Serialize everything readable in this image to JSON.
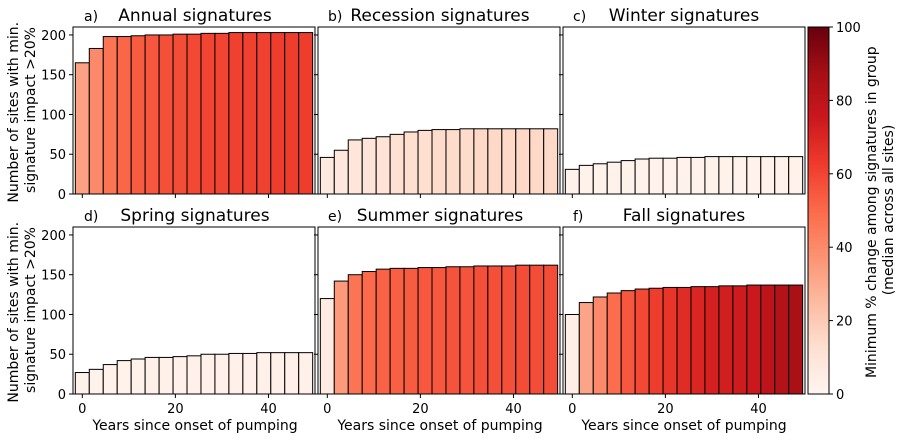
{
  "colormap": [
    "#fff5f0",
    "#fee0d2",
    "#fcbba1",
    "#fc9272",
    "#fb6a4a",
    "#ef3b2c",
    "#cb181d",
    "#a50f15",
    "#67000d"
  ],
  "shared": {
    "xlabel": "Years since onset of pumping",
    "ylabel": [
      "Number of sites with min.",
      "signature impact >20%"
    ],
    "xlim": [
      -2,
      50
    ],
    "ylim": [
      0,
      210
    ],
    "xticks": [
      0,
      20,
      40
    ],
    "yticks": [
      0,
      50,
      100,
      150,
      200
    ]
  },
  "colorbar": {
    "label": [
      "Minimum % change among signatures in group",
      "(median across all sites)"
    ],
    "range": [
      0,
      100
    ],
    "ticks": [
      0,
      20,
      40,
      60,
      80,
      100
    ]
  },
  "chart_data": [
    {
      "type": "bar",
      "letter": "a)",
      "title": "Annual signatures",
      "x": [
        0,
        3,
        6,
        9,
        12,
        15,
        18,
        21,
        24,
        27,
        30,
        33,
        36,
        39,
        42,
        45,
        48
      ],
      "values": [
        165,
        183,
        198,
        198,
        199,
        200,
        200,
        201,
        201,
        202,
        202,
        203,
        203,
        203,
        203,
        203,
        203
      ],
      "color_values": [
        33,
        40,
        47,
        51,
        54,
        55,
        57,
        58,
        59,
        60,
        60,
        61,
        61,
        61,
        62,
        62,
        62
      ]
    },
    {
      "type": "bar",
      "letter": "b)",
      "title": "Recession signatures",
      "x": [
        0,
        3,
        6,
        9,
        12,
        15,
        18,
        21,
        24,
        27,
        30,
        33,
        36,
        39,
        42,
        45,
        48
      ],
      "values": [
        46,
        55,
        68,
        70,
        72,
        75,
        78,
        80,
        81,
        81,
        82,
        82,
        82,
        82,
        82,
        82,
        82
      ],
      "color_values": [
        7,
        8,
        9,
        10,
        11,
        12,
        13,
        13,
        14,
        14,
        14,
        15,
        15,
        15,
        15,
        15,
        15
      ]
    },
    {
      "type": "bar",
      "letter": "c)",
      "title": "Winter signatures",
      "x": [
        0,
        3,
        6,
        9,
        12,
        15,
        18,
        21,
        24,
        27,
        30,
        33,
        36,
        39,
        42,
        45,
        48
      ],
      "values": [
        31,
        36,
        38,
        40,
        42,
        44,
        45,
        45,
        46,
        46,
        47,
        47,
        47,
        47,
        47,
        47,
        47
      ],
      "color_values": [
        2,
        2,
        2,
        2,
        2,
        2,
        2,
        2,
        2,
        2,
        2,
        2,
        2,
        2,
        2,
        2,
        2
      ]
    },
    {
      "type": "bar",
      "letter": "d)",
      "title": "Spring signatures",
      "x": [
        0,
        3,
        6,
        9,
        12,
        15,
        18,
        21,
        24,
        27,
        30,
        33,
        36,
        39,
        42,
        45,
        48
      ],
      "values": [
        27,
        31,
        37,
        42,
        44,
        46,
        46,
        47,
        48,
        50,
        50,
        51,
        51,
        52,
        52,
        52,
        52
      ],
      "color_values": [
        2,
        2,
        2,
        2,
        2,
        3,
        3,
        3,
        3,
        3,
        3,
        3,
        3,
        3,
        3,
        3,
        3
      ]
    },
    {
      "type": "bar",
      "letter": "e)",
      "title": "Summer signatures",
      "x": [
        0,
        3,
        6,
        9,
        12,
        15,
        18,
        21,
        24,
        27,
        30,
        33,
        36,
        39,
        42,
        45,
        48
      ],
      "values": [
        120,
        142,
        150,
        154,
        157,
        158,
        158,
        159,
        159,
        160,
        160,
        161,
        161,
        161,
        162,
        162,
        162
      ],
      "color_values": [
        6,
        35,
        47,
        50,
        52,
        53,
        54,
        55,
        55,
        56,
        56,
        57,
        57,
        57,
        58,
        58,
        58
      ]
    },
    {
      "type": "bar",
      "letter": "f)",
      "title": "Fall signatures",
      "x": [
        0,
        3,
        6,
        9,
        12,
        15,
        18,
        21,
        24,
        27,
        30,
        33,
        36,
        39,
        42,
        45,
        48
      ],
      "values": [
        100,
        115,
        122,
        127,
        130,
        132,
        133,
        134,
        134,
        135,
        135,
        136,
        136,
        137,
        137,
        137,
        137
      ],
      "color_values": [
        4,
        32,
        40,
        49,
        55,
        59,
        62,
        65,
        68,
        70,
        72,
        73,
        74,
        75,
        80,
        83,
        86
      ]
    }
  ]
}
